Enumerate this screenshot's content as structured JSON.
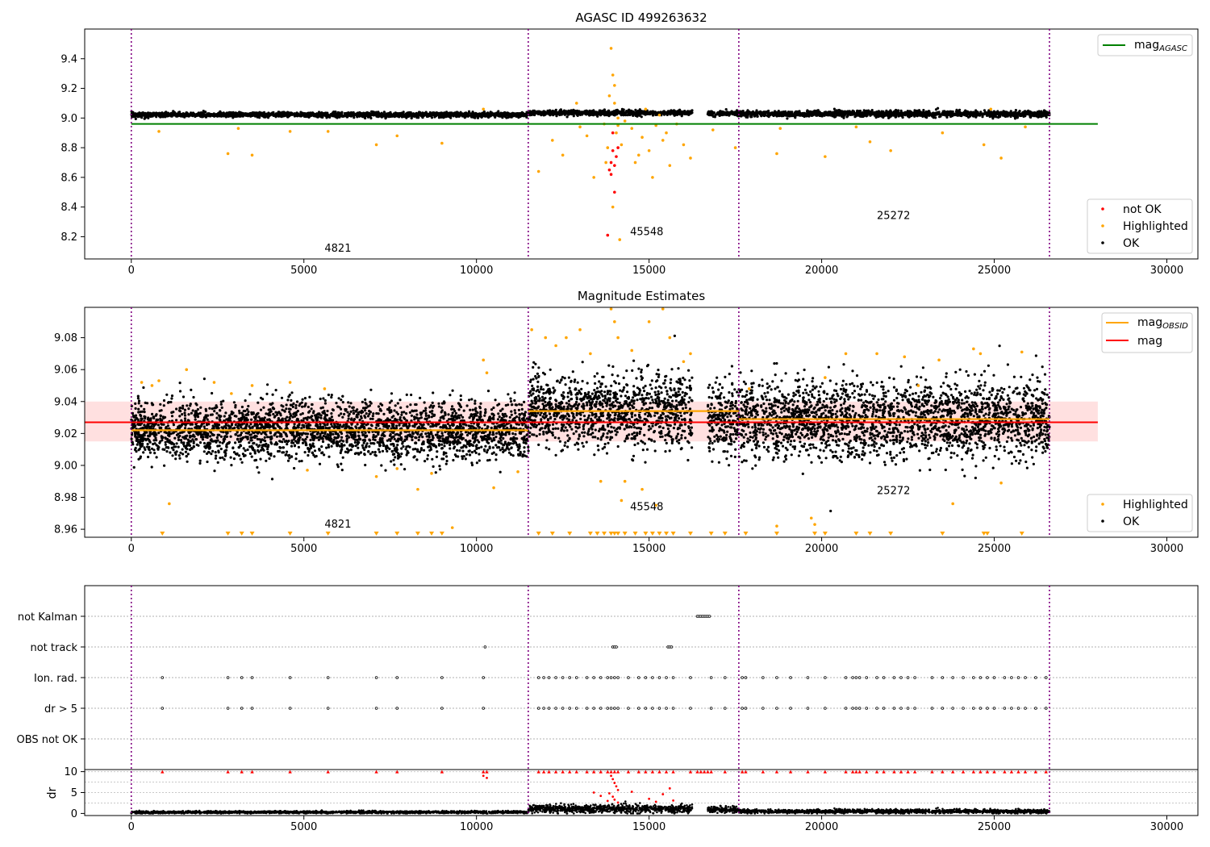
{
  "chart_data": [
    {
      "type": "scatter",
      "title": "AGASC ID 499263632",
      "xlim": [
        -1350,
        30900
      ],
      "ylim": [
        8.05,
        9.6
      ],
      "x_ticks": [
        0,
        5000,
        10000,
        15000,
        20000,
        25000,
        30000
      ],
      "x_tick_labels": [
        "0",
        "5000",
        "10000",
        "15000",
        "20000",
        "25000",
        "30000"
      ],
      "y_ticks": [
        8.2,
        8.4,
        8.6,
        8.8,
        9.0,
        9.2,
        9.4
      ],
      "y_tick_labels": [
        "8.2",
        "8.4",
        "8.6",
        "8.8",
        "9.0",
        "9.2",
        "9.4"
      ],
      "obs_boundaries": [
        0,
        11500,
        17600,
        26600
      ],
      "obsid_labels": [
        {
          "text": "4821",
          "x": 5600,
          "y": 8.1
        },
        {
          "text": "45548",
          "x": 14450,
          "y": 8.21
        },
        {
          "text": "25272",
          "x": 21600,
          "y": 8.32
        }
      ],
      "mag_agasc": 8.96,
      "mag_agasc_range": [
        0,
        28000
      ],
      "ok_bands": [
        {
          "x": [
            0,
            11500
          ],
          "y": 9.022,
          "spread": 0.008
        },
        {
          "x": [
            11500,
            16250
          ],
          "y": 9.035,
          "spread": 0.008
        },
        {
          "x": [
            16700,
            17600
          ],
          "y": 9.03,
          "spread": 0.008
        },
        {
          "x": [
            17600,
            26600
          ],
          "y": 9.028,
          "spread": 0.01
        }
      ],
      "highlighted_points": [
        [
          800,
          8.91
        ],
        [
          2800,
          8.76
        ],
        [
          3100,
          8.93
        ],
        [
          3500,
          8.75
        ],
        [
          4600,
          8.91
        ],
        [
          5700,
          8.91
        ],
        [
          7100,
          8.82
        ],
        [
          7700,
          8.88
        ],
        [
          9000,
          8.83
        ],
        [
          10200,
          9.06
        ],
        [
          11800,
          8.64
        ],
        [
          12200,
          8.85
        ],
        [
          12500,
          8.75
        ],
        [
          13000,
          8.94
        ],
        [
          13400,
          8.6
        ],
        [
          13700,
          8.96
        ],
        [
          13800,
          8.8
        ],
        [
          13850,
          9.15
        ],
        [
          13900,
          9.47
        ],
        [
          13950,
          9.29
        ],
        [
          14000,
          9.1
        ],
        [
          14050,
          8.9
        ],
        [
          14100,
          9.0
        ],
        [
          14000,
          9.22
        ],
        [
          13950,
          8.4
        ],
        [
          14100,
          8.95
        ],
        [
          14200,
          8.82
        ],
        [
          14300,
          8.98
        ],
        [
          14500,
          8.93
        ],
        [
          14800,
          8.87
        ],
        [
          15000,
          8.78
        ],
        [
          15200,
          8.95
        ],
        [
          15400,
          8.85
        ],
        [
          15600,
          8.68
        ],
        [
          15800,
          8.96
        ],
        [
          16000,
          8.82
        ],
        [
          16200,
          8.73
        ],
        [
          15100,
          8.6
        ],
        [
          14700,
          8.75
        ],
        [
          13200,
          8.88
        ],
        [
          12900,
          9.1
        ],
        [
          14900,
          9.06
        ],
        [
          15300,
          9.02
        ],
        [
          15500,
          8.9
        ],
        [
          14600,
          8.7
        ],
        [
          16850,
          8.92
        ],
        [
          17500,
          8.8
        ],
        [
          18700,
          8.76
        ],
        [
          18800,
          8.93
        ],
        [
          20100,
          8.74
        ],
        [
          21000,
          8.94
        ],
        [
          21400,
          8.84
        ],
        [
          22000,
          8.78
        ],
        [
          23500,
          8.9
        ],
        [
          24700,
          8.82
        ],
        [
          25200,
          8.73
        ],
        [
          25900,
          8.94
        ],
        [
          24900,
          9.06
        ],
        [
          14150,
          8.18
        ],
        [
          13750,
          8.7
        ]
      ],
      "not_ok_points": [
        [
          13850,
          8.65
        ],
        [
          13900,
          8.7
        ],
        [
          13950,
          8.78
        ],
        [
          14000,
          8.5
        ],
        [
          13800,
          8.21
        ],
        [
          13900,
          8.62
        ],
        [
          14050,
          8.74
        ],
        [
          13950,
          8.9
        ],
        [
          14000,
          8.68
        ],
        [
          14100,
          8.8
        ]
      ],
      "legends": {
        "top": [
          {
            "label": "mag",
            "subscript": "AGASC",
            "color": "#008000"
          }
        ],
        "bottom": [
          {
            "label": "not OK",
            "color": "#ff0000"
          },
          {
            "label": "Highlighted",
            "color": "#ffa500"
          },
          {
            "label": "OK",
            "color": "#000000"
          }
        ]
      }
    },
    {
      "type": "scatter",
      "title": "Magnitude Estimates",
      "xlim": [
        -1350,
        30900
      ],
      "ylim": [
        8.955,
        9.099
      ],
      "x_ticks": [
        0,
        5000,
        10000,
        15000,
        20000,
        25000,
        30000
      ],
      "x_tick_labels": [
        "0",
        "5000",
        "10000",
        "15000",
        "20000",
        "25000",
        "30000"
      ],
      "y_ticks": [
        8.96,
        8.98,
        9.0,
        9.02,
        9.04,
        9.06,
        9.08
      ],
      "y_tick_labels": [
        "8.96",
        "8.98",
        "9.00",
        "9.02",
        "9.04",
        "9.06",
        "9.08"
      ],
      "obs_boundaries": [
        0,
        11500,
        17600,
        26600
      ],
      "obsid_labels": [
        {
          "text": "4821",
          "x": 5600,
          "y": 8.961
        },
        {
          "text": "45548",
          "x": 14450,
          "y": 8.972
        },
        {
          "text": "25272",
          "x": 21600,
          "y": 8.982
        }
      ],
      "mag": 9.027,
      "mag_band": [
        9.015,
        9.04
      ],
      "mag_range": [
        -1350,
        28000
      ],
      "mag_obsid_segments": [
        {
          "x": [
            0,
            11500
          ],
          "y": 9.022
        },
        {
          "x": [
            11500,
            17600
          ],
          "y": 9.034
        },
        {
          "x": [
            17600,
            26600
          ],
          "y": 9.029
        }
      ],
      "ok_bands": [
        {
          "x": [
            0,
            11500
          ],
          "y": 9.022,
          "spread": 0.009
        },
        {
          "x": [
            11500,
            16250
          ],
          "y": 9.034,
          "spread": 0.011
        },
        {
          "x": [
            16700,
            17600
          ],
          "y": 9.03,
          "spread": 0.011
        },
        {
          "x": [
            17600,
            26600
          ],
          "y": 9.029,
          "spread": 0.012
        }
      ],
      "highlighted_points": [
        [
          300,
          9.052
        ],
        [
          600,
          9.05
        ],
        [
          800,
          9.053
        ],
        [
          1100,
          8.976
        ],
        [
          1600,
          9.06
        ],
        [
          2400,
          9.052
        ],
        [
          2900,
          9.045
        ],
        [
          3500,
          9.05
        ],
        [
          4600,
          9.052
        ],
        [
          5100,
          8.997
        ],
        [
          5600,
          9.048
        ],
        [
          7100,
          8.993
        ],
        [
          7700,
          8.998
        ],
        [
          8300,
          8.985
        ],
        [
          8700,
          8.995
        ],
        [
          9300,
          8.961
        ],
        [
          10200,
          9.066
        ],
        [
          10300,
          9.058
        ],
        [
          10500,
          8.986
        ],
        [
          11200,
          8.996
        ],
        [
          11600,
          9.085
        ],
        [
          12000,
          9.08
        ],
        [
          12300,
          9.075
        ],
        [
          12600,
          9.08
        ],
        [
          13000,
          9.085
        ],
        [
          13300,
          9.07
        ],
        [
          13600,
          8.99
        ],
        [
          13900,
          9.098
        ],
        [
          14000,
          9.09
        ],
        [
          14100,
          9.08
        ],
        [
          14200,
          8.978
        ],
        [
          14500,
          9.072
        ],
        [
          14800,
          8.985
        ],
        [
          15000,
          9.09
        ],
        [
          15200,
          8.975
        ],
        [
          15400,
          9.098
        ],
        [
          15600,
          9.08
        ],
        [
          16000,
          9.065
        ],
        [
          16200,
          9.07
        ],
        [
          14300,
          8.99
        ],
        [
          19700,
          8.967
        ],
        [
          19800,
          8.963
        ],
        [
          20700,
          9.07
        ],
        [
          21600,
          9.07
        ],
        [
          22400,
          9.068
        ],
        [
          23400,
          9.066
        ],
        [
          23800,
          8.976
        ],
        [
          24400,
          9.073
        ],
        [
          24600,
          9.07
        ],
        [
          25200,
          8.989
        ],
        [
          25800,
          9.071
        ],
        [
          18700,
          8.962
        ],
        [
          17900,
          9.048
        ],
        [
          20100,
          9.055
        ],
        [
          22800,
          9.05
        ]
      ],
      "below_range_x": [
        900,
        2800,
        3200,
        3500,
        4600,
        5700,
        7100,
        7700,
        8300,
        8700,
        9000,
        11800,
        12200,
        12700,
        13300,
        13500,
        13700,
        13900,
        14000,
        14100,
        14300,
        14600,
        14900,
        15100,
        15300,
        15500,
        15700,
        16200,
        16800,
        17200,
        17800,
        18700,
        19800,
        20100,
        21000,
        21400,
        22000,
        23500,
        24700,
        24800,
        25800
      ],
      "legends": {
        "top": [
          {
            "label": "mag",
            "subscript": "OBSID",
            "color": "#ffa500"
          },
          {
            "label": "mag",
            "subscript": "",
            "color": "#ff0000"
          }
        ],
        "bottom": [
          {
            "label": "Highlighted",
            "color": "#ffa500"
          },
          {
            "label": "OK",
            "color": "#000000"
          }
        ]
      }
    },
    {
      "type": "scatter",
      "title": "",
      "xlim": [
        -1350,
        30900
      ],
      "x_ticks": [
        0,
        5000,
        10000,
        15000,
        20000,
        25000,
        30000
      ],
      "x_tick_labels": [
        "0",
        "5000",
        "10000",
        "15000",
        "20000",
        "25000",
        "30000"
      ],
      "obs_boundaries": [
        0,
        11500,
        17600,
        26600
      ],
      "flag_rows": [
        "not Kalman",
        "not track",
        "Ion. rad.",
        "dr > 5",
        "OBS not OK"
      ],
      "flag_points": {
        "not Kalman": [
          16400,
          16450,
          16500,
          16550,
          16600,
          16650,
          16700,
          16750
        ],
        "not track": [
          10250,
          13950,
          14000,
          14050,
          15550,
          15600,
          15650
        ],
        "Ion. rad.": [
          900,
          2800,
          3200,
          3500,
          4600,
          5700,
          7100,
          7700,
          9000,
          10200,
          11800,
          11950,
          12100,
          12300,
          12500,
          12700,
          12900,
          13200,
          13400,
          13600,
          13800,
          13900,
          14000,
          14100,
          14400,
          14700,
          14900,
          15100,
          15300,
          15500,
          15700,
          16200,
          16800,
          17200,
          17700,
          17800,
          18300,
          18700,
          19100,
          19600,
          20100,
          20700,
          20900,
          21000,
          21100,
          21300,
          21600,
          21800,
          22100,
          22300,
          22500,
          22700,
          23200,
          23500,
          23800,
          24100,
          24400,
          24600,
          24800,
          25000,
          25300,
          25500,
          25700,
          25900,
          26200,
          26500
        ],
        "dr > 5": [
          900,
          2800,
          3200,
          3500,
          4600,
          5700,
          7100,
          7700,
          9000,
          10200,
          11800,
          11950,
          12100,
          12300,
          12500,
          12700,
          12900,
          13200,
          13400,
          13600,
          13800,
          13900,
          14000,
          14100,
          14400,
          14700,
          14900,
          15100,
          15300,
          15500,
          15700,
          16200,
          16800,
          17200,
          17700,
          17800,
          18300,
          18700,
          19100,
          19600,
          20100,
          20700,
          20900,
          21000,
          21100,
          21300,
          21600,
          21800,
          22100,
          22300,
          22500,
          22700,
          23200,
          23500,
          23800,
          24100,
          24400,
          24600,
          24800,
          25000,
          25300,
          25500,
          25700,
          25900,
          26200,
          26500
        ],
        "OBS not OK": []
      },
      "dr": {
        "ylabel": "dr",
        "ylim": [
          -0.5,
          10.5
        ],
        "y_ticks": [
          0,
          5,
          10
        ],
        "y_tick_labels": [
          "0",
          "5",
          "10"
        ],
        "clipped_x": [
          900,
          2800,
          3200,
          3500,
          4600,
          5700,
          7100,
          7700,
          9000,
          10200,
          10300,
          11800,
          11950,
          12100,
          12300,
          12500,
          12700,
          12900,
          13200,
          13400,
          13600,
          13800,
          13900,
          14000,
          14100,
          14400,
          14700,
          14900,
          15100,
          15300,
          15500,
          15700,
          16200,
          16400,
          16500,
          16600,
          16700,
          16800,
          17200,
          17700,
          17800,
          18300,
          18700,
          19100,
          19600,
          20100,
          20700,
          20900,
          21000,
          21100,
          21300,
          21600,
          21800,
          22100,
          22300,
          22500,
          22700,
          23200,
          23500,
          23800,
          24100,
          24400,
          24600,
          24800,
          25000,
          25300,
          25500,
          25700,
          25900,
          26200,
          26500
        ],
        "high_points": [
          [
            13900,
            9.0
          ],
          [
            13950,
            8.2
          ],
          [
            14000,
            7.3
          ],
          [
            14050,
            6.5
          ],
          [
            14100,
            5.6
          ],
          [
            13850,
            4.8
          ],
          [
            13950,
            4.0
          ],
          [
            14000,
            3.3
          ],
          [
            14100,
            2.6
          ],
          [
            13800,
            3.0
          ],
          [
            13400,
            5.0
          ],
          [
            13600,
            4.2
          ],
          [
            14500,
            5.2
          ],
          [
            15000,
            3.5
          ],
          [
            15200,
            2.8
          ],
          [
            15400,
            4.6
          ],
          [
            15600,
            6.0
          ],
          [
            15700,
            3.1
          ],
          [
            10200,
            9.0
          ],
          [
            10300,
            8.5
          ]
        ],
        "base_bands": [
          {
            "x": [
              0,
              11500
            ],
            "level": 0.3
          },
          {
            "x": [
              11500,
              16250
            ],
            "level": 1.1
          },
          {
            "x": [
              16700,
              17600
            ],
            "level": 0.9
          },
          {
            "x": [
              17600,
              26600
            ],
            "level": 0.5
          }
        ]
      }
    }
  ]
}
